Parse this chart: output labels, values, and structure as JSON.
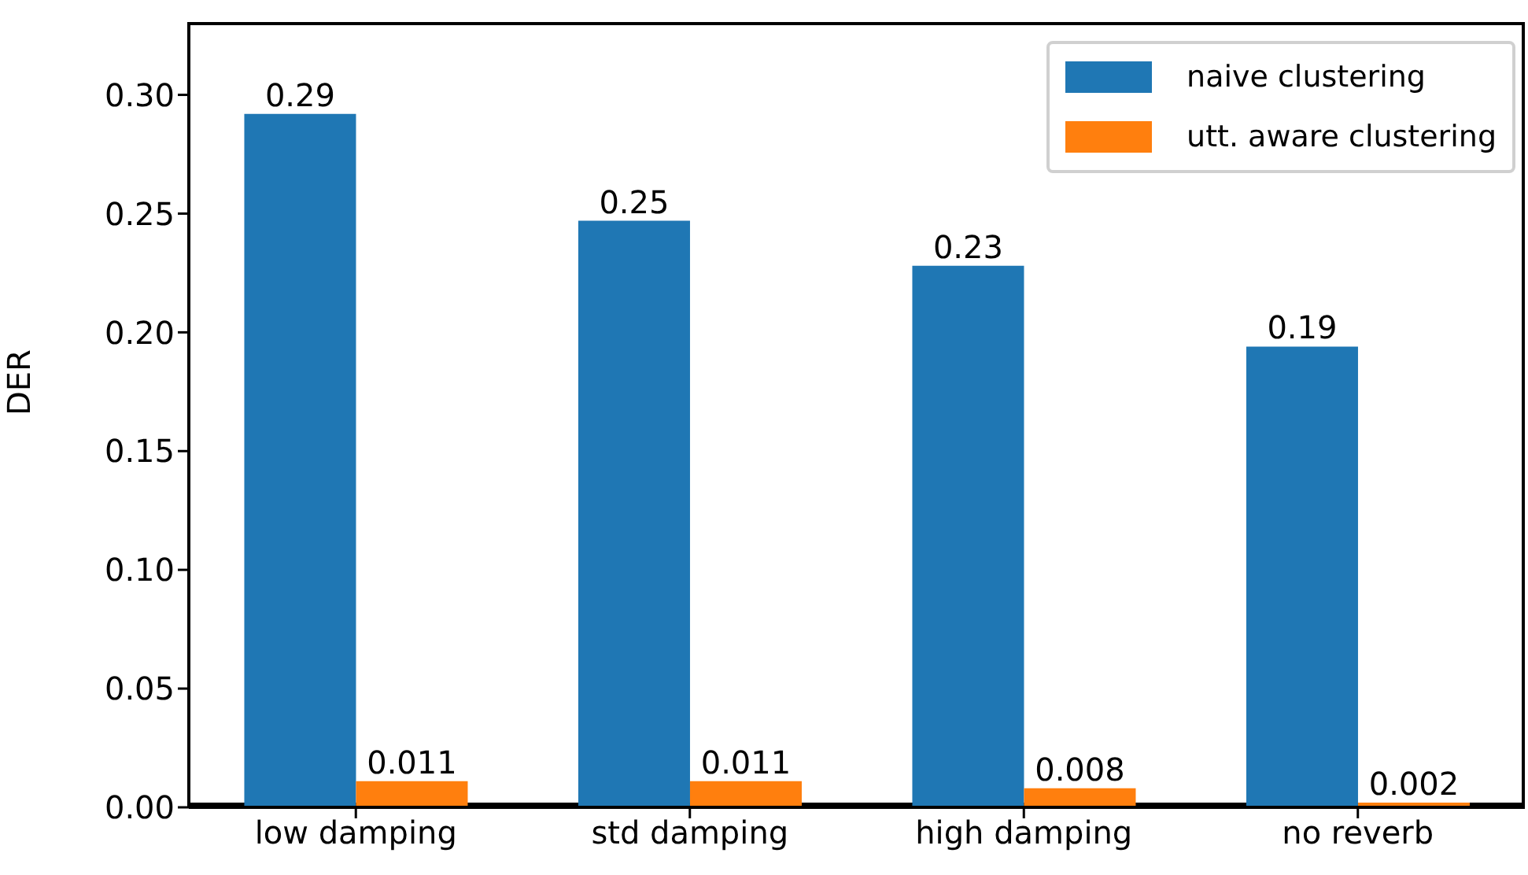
{
  "chart_data": {
    "type": "bar",
    "ylabel": "DER",
    "categories": [
      "low damping",
      "std damping",
      "high damping",
      "no reverb"
    ],
    "series": [
      {
        "name": "naive clustering",
        "color": "#1f77b4",
        "values": [
          0.292,
          0.247,
          0.228,
          0.194
        ],
        "value_labels": [
          "0.29",
          "0.25",
          "0.23",
          "0.19"
        ]
      },
      {
        "name": "utt. aware clustering",
        "color": "#ff7f0e",
        "values": [
          0.011,
          0.011,
          0.008,
          0.002
        ],
        "value_labels": [
          "0.011",
          "0.011",
          "0.008",
          "0.002"
        ]
      }
    ],
    "ylim": [
      0,
      0.33
    ],
    "yticks": [
      {
        "value": 0,
        "label": "0.00"
      },
      0.05,
      {
        "value": 0.1,
        "label": "0.10"
      },
      0.15,
      {
        "value": 0.2,
        "label": "0.20"
      },
      0.25,
      {
        "value": 0.3,
        "label": "0.30"
      }
    ],
    "grid": false,
    "legend": "top right"
  }
}
